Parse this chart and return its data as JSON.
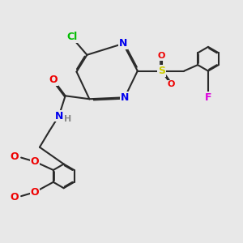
{
  "bg_color": "#e8e8e8",
  "bond_color": "#2a2a2a",
  "bond_width": 1.5,
  "atom_colors": {
    "Cl": "#00bb00",
    "N": "#0000ee",
    "O": "#ee0000",
    "S": "#cccc00",
    "F": "#dd00dd",
    "H": "#888888",
    "C": "#2a2a2a"
  },
  "font_size": 9
}
